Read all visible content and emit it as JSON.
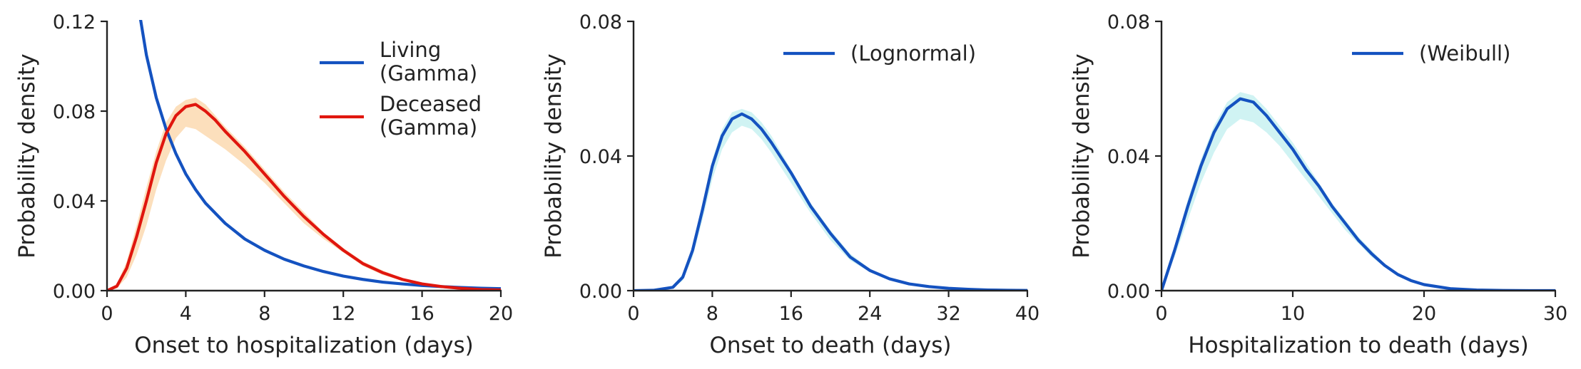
{
  "chart_data": [
    {
      "type": "line",
      "xlabel": "Onset to hospitalization (days)",
      "ylabel": "Probability density",
      "xlim": [
        0,
        20
      ],
      "ylim": [
        0,
        0.12
      ],
      "xticks": [
        "0",
        "4",
        "8",
        "12",
        "16",
        "20"
      ],
      "yticks": [
        "0.00",
        "0.04",
        "0.08",
        "0.12"
      ],
      "grid": false,
      "legend_position": "top-right",
      "series": [
        {
          "name": "Living\n(Gamma)",
          "color": "#1452c0",
          "x": [
            1.7,
            2,
            2.5,
            3,
            3.5,
            4,
            4.5,
            5,
            6,
            7,
            8,
            9,
            10,
            11,
            12,
            13,
            14,
            15,
            16,
            17,
            18,
            19,
            20
          ],
          "y": [
            0.121,
            0.105,
            0.086,
            0.072,
            0.061,
            0.052,
            0.045,
            0.039,
            0.03,
            0.023,
            0.018,
            0.014,
            0.011,
            0.0085,
            0.0065,
            0.005,
            0.0038,
            0.003,
            0.0023,
            0.0018,
            0.0014,
            0.0011,
            0.0009
          ]
        },
        {
          "name": "Deceased\n(Gamma)",
          "color": "#e0160e",
          "band_color": "#fbd9b0",
          "x": [
            0,
            0.5,
            1,
            1.5,
            2,
            2.5,
            3,
            3.5,
            4,
            4.5,
            5,
            5.5,
            6,
            7,
            8,
            9,
            10,
            11,
            12,
            13,
            14,
            15,
            16,
            17,
            18,
            19,
            20
          ],
          "y": [
            0,
            0.002,
            0.01,
            0.024,
            0.04,
            0.057,
            0.07,
            0.078,
            0.082,
            0.083,
            0.08,
            0.076,
            0.071,
            0.062,
            0.052,
            0.042,
            0.033,
            0.025,
            0.018,
            0.012,
            0.008,
            0.005,
            0.003,
            0.0018,
            0.001,
            0.0005,
            0.0003
          ],
          "band_low": [
            0,
            0.001,
            0.006,
            0.016,
            0.029,
            0.045,
            0.058,
            0.068,
            0.073,
            0.072,
            0.069,
            0.066,
            0.063,
            0.056,
            0.048,
            0.039,
            0.03,
            0.023,
            0.017,
            0.011,
            0.007,
            0.0045,
            0.0027,
            0.0016,
            0.0009,
            0.0004,
            0.0002
          ],
          "band_high": [
            0,
            0.003,
            0.013,
            0.029,
            0.046,
            0.062,
            0.075,
            0.082,
            0.085,
            0.086,
            0.083,
            0.078,
            0.073,
            0.064,
            0.054,
            0.044,
            0.035,
            0.026,
            0.019,
            0.013,
            0.009,
            0.0055,
            0.0033,
            0.002,
            0.0011,
            0.0006,
            0.0003
          ]
        }
      ]
    },
    {
      "type": "line",
      "xlabel": "Onset to death (days)",
      "ylabel": "Probability density",
      "xlim": [
        0,
        40
      ],
      "ylim": [
        0,
        0.08
      ],
      "xticks": [
        "0",
        "8",
        "16",
        "24",
        "32",
        "40"
      ],
      "yticks": [
        "0.00",
        "0.04",
        "0.08"
      ],
      "grid": false,
      "legend_position": "top-right",
      "series": [
        {
          "name": "(Lognormal)",
          "color": "#1452c0",
          "band_color": "#c8f1f1",
          "x": [
            0,
            2,
            4,
            5,
            6,
            7,
            8,
            9,
            10,
            11,
            12,
            13,
            14,
            16,
            18,
            20,
            22,
            24,
            26,
            28,
            30,
            32,
            34,
            36,
            38,
            40
          ],
          "y": [
            0,
            0.0001,
            0.001,
            0.004,
            0.012,
            0.024,
            0.037,
            0.046,
            0.051,
            0.0525,
            0.051,
            0.048,
            0.044,
            0.035,
            0.025,
            0.017,
            0.01,
            0.006,
            0.0035,
            0.002,
            0.0012,
            0.0007,
            0.0004,
            0.0002,
            0.0001,
            5e-05
          ],
          "band_low": [
            0,
            0.0001,
            0.0008,
            0.003,
            0.01,
            0.021,
            0.033,
            0.042,
            0.047,
            0.049,
            0.048,
            0.045,
            0.041,
            0.032,
            0.023,
            0.015,
            0.009,
            0.0055,
            0.0032,
            0.0018,
            0.0011,
            0.0006,
            0.0003,
            0.0002,
            0.0001,
            4e-05
          ],
          "band_high": [
            0,
            0.0002,
            0.0012,
            0.005,
            0.013,
            0.026,
            0.039,
            0.048,
            0.053,
            0.054,
            0.053,
            0.05,
            0.046,
            0.036,
            0.026,
            0.018,
            0.011,
            0.0065,
            0.0038,
            0.0022,
            0.0013,
            0.0008,
            0.0004,
            0.0002,
            0.0001,
            6e-05
          ]
        }
      ]
    },
    {
      "type": "line",
      "xlabel": "Hospitalization to death (days)",
      "ylabel": "Probability density",
      "xlim": [
        0,
        30
      ],
      "ylim": [
        0,
        0.08
      ],
      "xticks": [
        "0",
        "10",
        "20",
        "30"
      ],
      "yticks": [
        "0.00",
        "0.04",
        "0.08"
      ],
      "grid": false,
      "legend_position": "top-right",
      "series": [
        {
          "name": "(Weibull)",
          "color": "#1452c0",
          "band_color": "#c8f1f1",
          "x": [
            0,
            1,
            2,
            3,
            4,
            5,
            6,
            7,
            8,
            9,
            10,
            11,
            12,
            13,
            14,
            15,
            16,
            17,
            18,
            19,
            20,
            22,
            24,
            26,
            28,
            30
          ],
          "y": [
            0,
            0.012,
            0.025,
            0.037,
            0.047,
            0.054,
            0.057,
            0.056,
            0.052,
            0.047,
            0.042,
            0.036,
            0.031,
            0.025,
            0.02,
            0.015,
            0.011,
            0.0075,
            0.0048,
            0.003,
            0.0018,
            0.0006,
            0.0002,
            5e-05,
            1e-05,
            0
          ],
          "band_low": [
            0,
            0.01,
            0.021,
            0.032,
            0.041,
            0.048,
            0.051,
            0.05,
            0.047,
            0.043,
            0.038,
            0.033,
            0.028,
            0.023,
            0.018,
            0.014,
            0.01,
            0.007,
            0.0045,
            0.0028,
            0.0017,
            0.0005,
            0.0002,
            5e-05,
            1e-05,
            0
          ],
          "band_high": [
            0,
            0.013,
            0.027,
            0.039,
            0.049,
            0.056,
            0.059,
            0.058,
            0.054,
            0.049,
            0.044,
            0.038,
            0.032,
            0.026,
            0.021,
            0.016,
            0.012,
            0.008,
            0.0052,
            0.0033,
            0.002,
            0.0007,
            0.0002,
            6e-05,
            1e-05,
            0
          ]
        }
      ]
    }
  ]
}
